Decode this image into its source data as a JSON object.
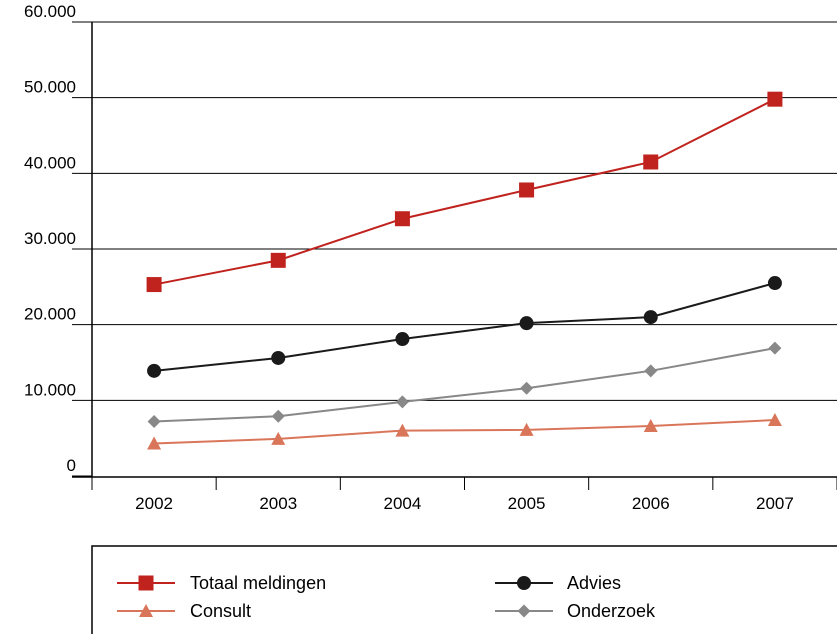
{
  "chart_data": {
    "type": "line",
    "categories": [
      "2002",
      "2003",
      "2004",
      "2005",
      "2006",
      "2007"
    ],
    "ylim": [
      0,
      60000
    ],
    "yticks": [
      {
        "value": 0,
        "label": "0"
      },
      {
        "value": 10000,
        "label": "10.000"
      },
      {
        "value": 20000,
        "label": "20.000"
      },
      {
        "value": 30000,
        "label": "30.000"
      },
      {
        "value": 40000,
        "label": "40.000"
      },
      {
        "value": 50000,
        "label": "50.000"
      },
      {
        "value": 60000,
        "label": "60.000"
      }
    ],
    "grid": true,
    "legend_position": "bottom",
    "series": [
      {
        "name": "Totaal meldingen",
        "marker": "square",
        "color": "#c0231e",
        "values": [
          25300,
          28500,
          34000,
          37800,
          41500,
          49800
        ]
      },
      {
        "name": "Advies",
        "marker": "circle",
        "color": "#1a1a1a",
        "values": [
          13900,
          15600,
          18100,
          20200,
          21000,
          25500
        ]
      },
      {
        "name": "Consult",
        "marker": "triangle",
        "color": "#d9765a",
        "values": [
          4300,
          4900,
          6000,
          6100,
          6600,
          7400
        ]
      },
      {
        "name": "Onderzoek",
        "marker": "diamond",
        "color": "#888888",
        "values": [
          7200,
          7900,
          9800,
          11600,
          13900,
          16900
        ]
      }
    ]
  }
}
